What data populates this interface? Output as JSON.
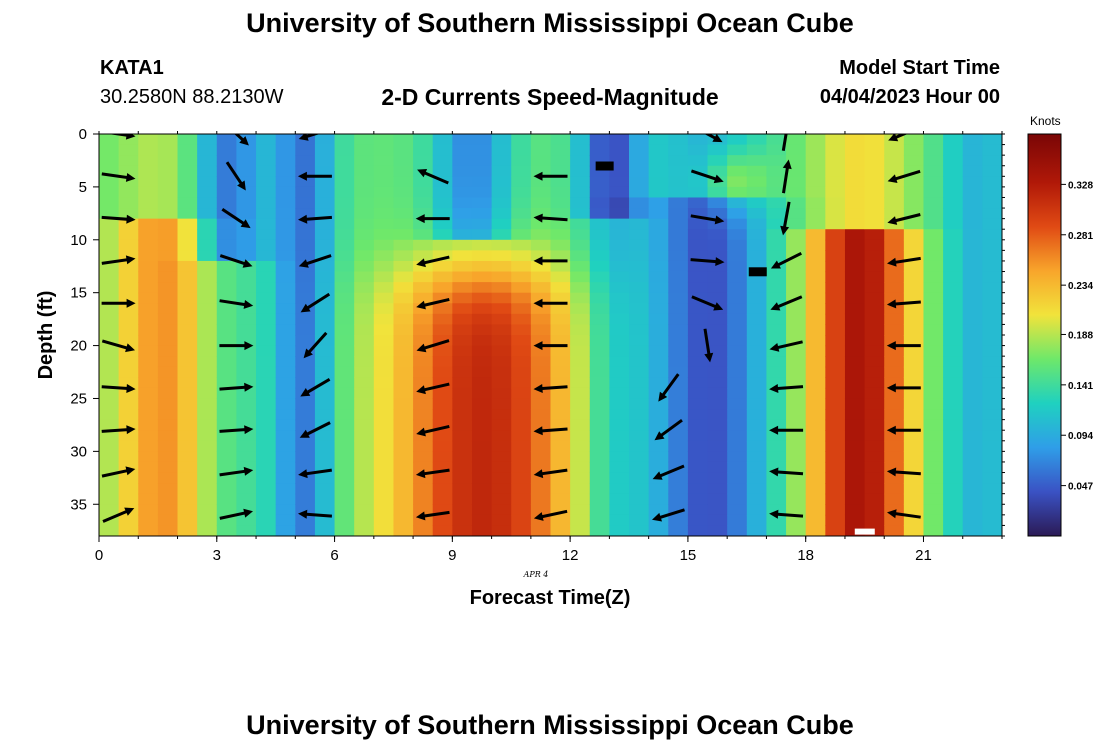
{
  "header": {
    "title": "University of Southern Mississippi Ocean Cube",
    "station": "KATA1",
    "coords": "30.2580N  88.2130W",
    "subtitle": "2-D Currents Speed-Magnitude",
    "model_start_label": "Model Start Time",
    "model_start_value": "04/04/2023 Hour 00"
  },
  "footer": {
    "title": "University of Southern Mississippi Ocean Cube"
  },
  "chart_data": {
    "type": "heatmap",
    "xlabel": "Forecast Time(Z)",
    "ylabel": "Depth (ft)",
    "date_label": "APR 4",
    "xlim": [
      0,
      23
    ],
    "ylim": [
      0,
      38
    ],
    "x_ticks": [
      0,
      3,
      6,
      9,
      12,
      15,
      18,
      21
    ],
    "y_ticks": [
      0,
      5,
      10,
      15,
      20,
      25,
      30,
      35
    ],
    "colorbar": {
      "label": "Knots",
      "min": 0.0,
      "max": 0.375,
      "ticks": [
        "0.328",
        "0.281",
        "0.234",
        "0.188",
        "0.141",
        "0.094",
        "0.047"
      ],
      "tick_values": [
        0.328,
        0.281,
        0.234,
        0.188,
        0.141,
        0.094,
        0.047
      ]
    },
    "colors": [
      "#2b1a55",
      "#3a52c4",
      "#2f9ee8",
      "#1fd1c0",
      "#6ee86a",
      "#f1e33b",
      "#f8a52b",
      "#e04a14",
      "#b01808",
      "#7a0606"
    ],
    "vector_hours": [
      0.5,
      3.5,
      5.5,
      8.5,
      11.5,
      14.5,
      15.5,
      17.5,
      20.5
    ],
    "vector_depths": [
      0,
      4,
      8,
      12,
      16,
      20,
      24,
      28,
      32,
      36
    ],
    "vectors": [
      [
        [
          0.7,
          0.1
        ],
        [
          0.7,
          0.1
        ],
        [
          0.7,
          0.05
        ],
        [
          0.7,
          -0.1
        ],
        [
          0.7,
          0
        ],
        [
          0.7,
          0.2
        ],
        [
          0.7,
          0.05
        ],
        [
          0.7,
          -0.05
        ],
        [
          0.7,
          -0.15
        ],
        [
          0.7,
          -0.3
        ]
      ],
      [
        [
          0.6,
          0.55
        ],
        [
          0.4,
          0.6
        ],
        [
          0.6,
          0.4
        ],
        [
          0.6,
          0.2
        ],
        [
          0.65,
          0.1
        ],
        [
          0.7,
          0
        ],
        [
          0.7,
          -0.05
        ],
        [
          0.7,
          -0.05
        ],
        [
          0.7,
          -0.1
        ],
        [
          0.7,
          -0.15
        ]
      ],
      [
        [
          -0.65,
          0.2
        ],
        [
          -0.7,
          0
        ],
        [
          -0.7,
          0.05
        ],
        [
          -0.6,
          0.2
        ],
        [
          -0.55,
          0.35
        ],
        [
          -0.45,
          0.5
        ],
        [
          -0.6,
          0.35
        ],
        [
          -0.6,
          0.3
        ],
        [
          -0.7,
          0.1
        ],
        [
          -0.7,
          -0.05
        ]
      ],
      [
        [
          0,
          0
        ],
        [
          -0.7,
          -0.3
        ],
        [
          -0.7,
          0
        ],
        [
          -0.65,
          0.15
        ],
        [
          -0.65,
          0.15
        ],
        [
          -0.65,
          0.2
        ],
        [
          -0.65,
          0.15
        ],
        [
          -0.65,
          0.15
        ],
        [
          -0.7,
          0.1
        ],
        [
          -0.7,
          0.1
        ]
      ],
      [
        [
          0,
          0
        ],
        [
          -0.7,
          0
        ],
        [
          -0.7,
          -0.05
        ],
        [
          -0.7,
          0
        ],
        [
          -0.7,
          0
        ],
        [
          -0.7,
          0
        ],
        [
          -0.7,
          0.05
        ],
        [
          -0.7,
          0.05
        ],
        [
          -0.7,
          0.1
        ],
        [
          -0.7,
          0.15
        ]
      ],
      [
        [
          0,
          0
        ],
        [
          0,
          0
        ],
        [
          0,
          0
        ],
        [
          0,
          0
        ],
        [
          0,
          0
        ],
        [
          0,
          0
        ],
        [
          -0.4,
          0.55
        ],
        [
          -0.55,
          0.4
        ],
        [
          -0.6,
          0.25
        ],
        [
          -0.65,
          0.2
        ]
      ],
      [
        [
          0.55,
          0.3
        ],
        [
          0.6,
          0.2
        ],
        [
          0.6,
          0.1
        ],
        [
          0.65,
          0.05
        ],
        [
          0.6,
          0.25
        ],
        [
          0.1,
          0.65
        ],
        [
          0,
          0
        ],
        [
          0,
          0
        ],
        [
          0,
          0
        ],
        [
          0,
          0
        ]
      ],
      [
        [
          0.1,
          -0.6
        ],
        [
          0.1,
          -0.65
        ],
        [
          -0.1,
          0.55
        ],
        [
          -0.6,
          0.3
        ],
        [
          -0.6,
          0.25
        ],
        [
          -0.65,
          0.15
        ],
        [
          -0.65,
          0.05
        ],
        [
          -0.65,
          0
        ],
        [
          -0.7,
          -0.05
        ],
        [
          -0.7,
          -0.05
        ]
      ],
      [
        [
          -0.6,
          0.25
        ],
        [
          -0.65,
          0.2
        ],
        [
          -0.6,
          0.15
        ],
        [
          -0.65,
          0.1
        ],
        [
          -0.65,
          0.05
        ],
        [
          -0.65,
          0
        ],
        [
          -0.7,
          0
        ],
        [
          -0.7,
          0
        ],
        [
          -0.7,
          -0.05
        ],
        [
          -0.7,
          -0.1
        ]
      ]
    ]
  }
}
